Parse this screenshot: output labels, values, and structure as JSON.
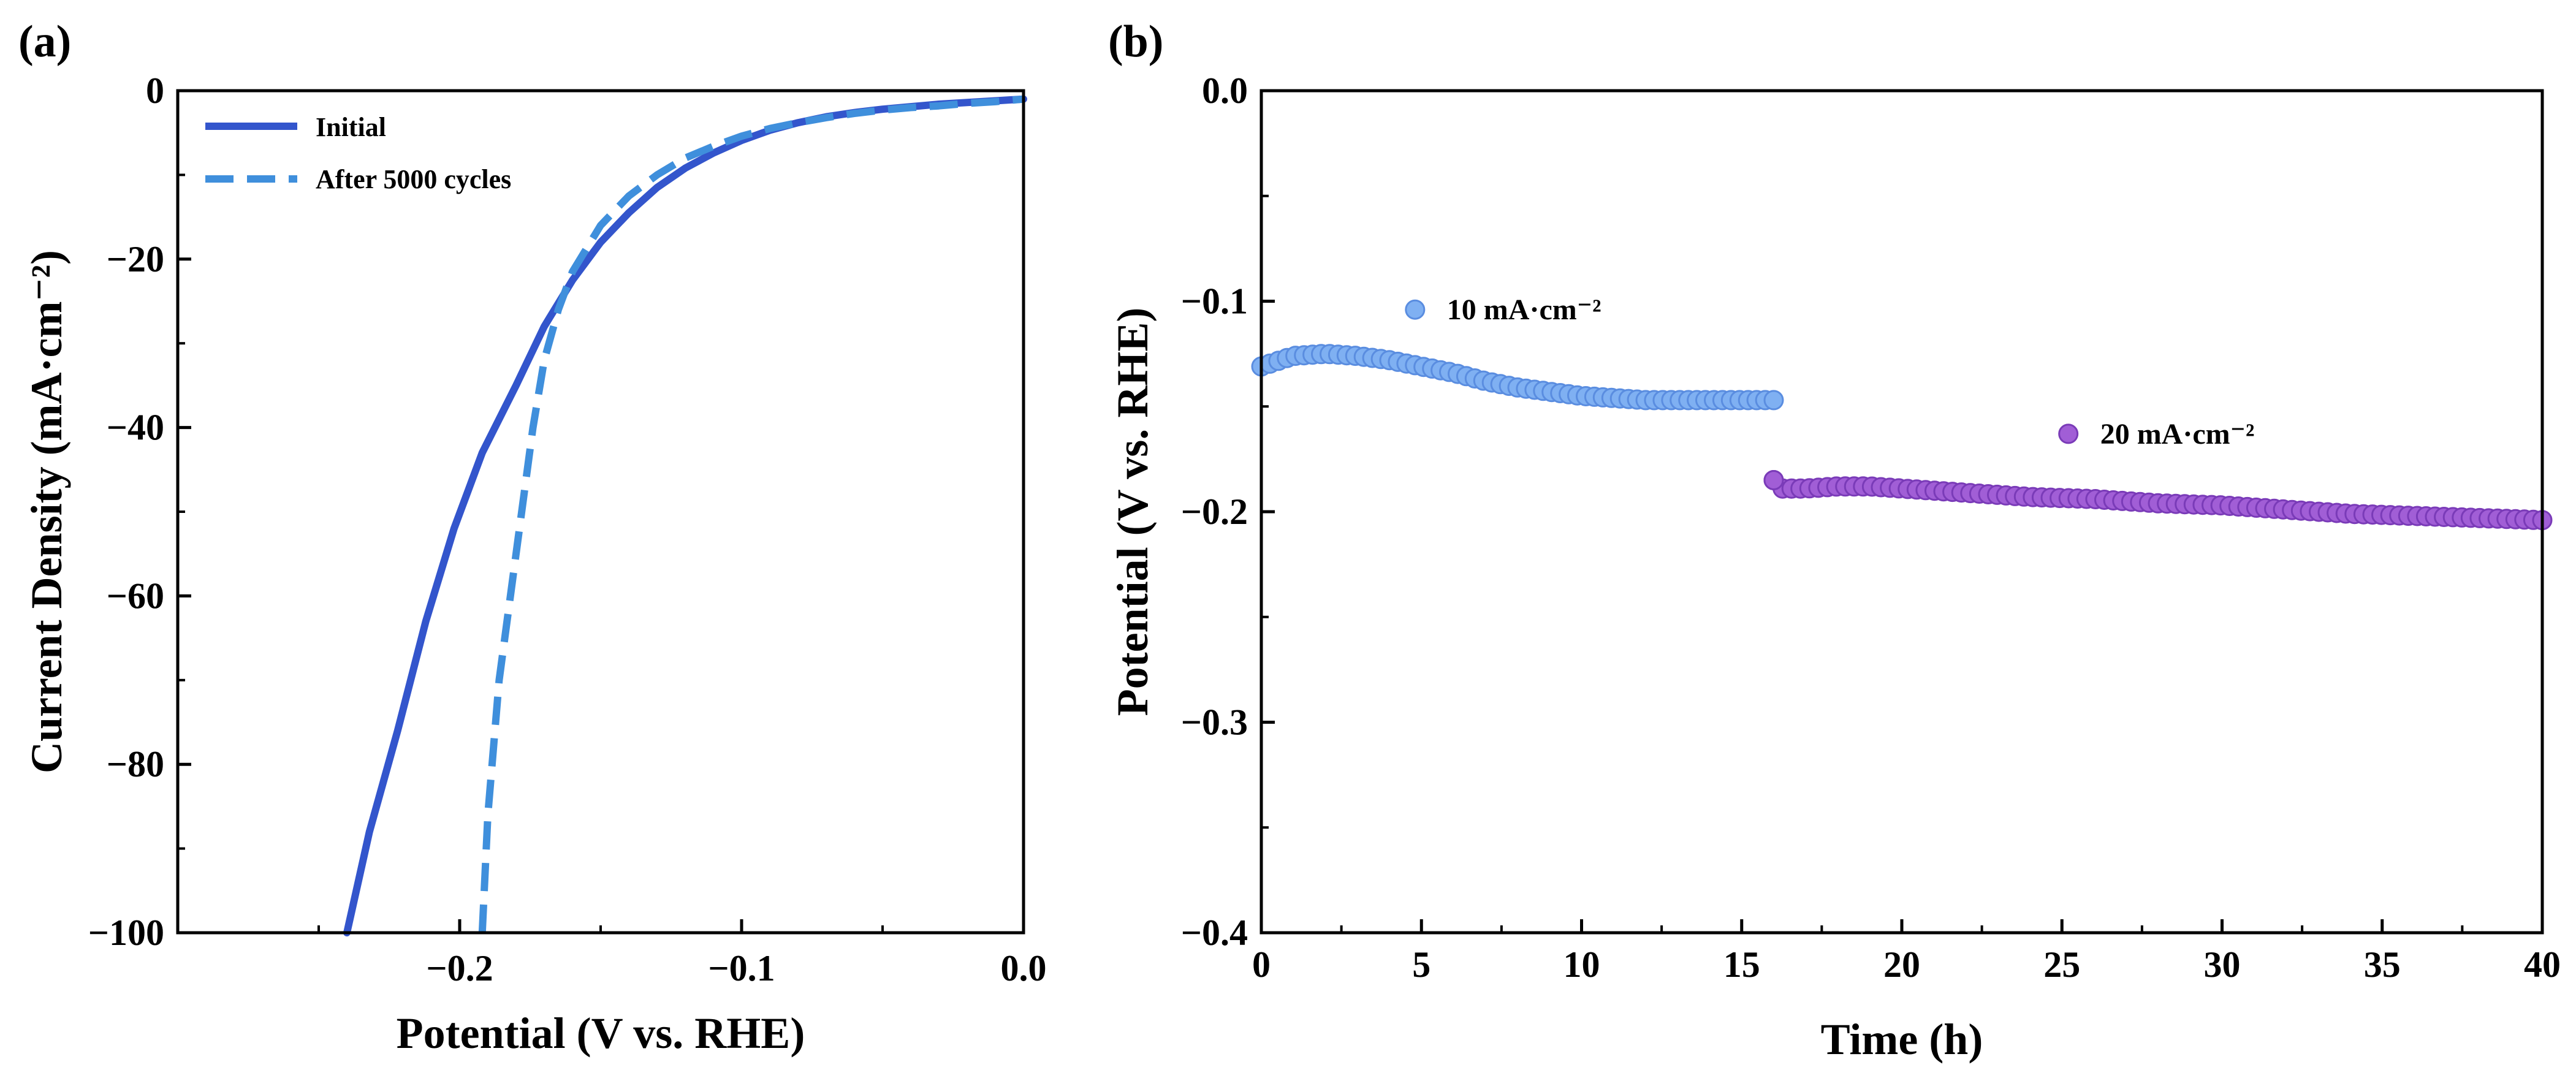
{
  "figure": {
    "panels": [
      {
        "label": "(a)"
      },
      {
        "label": "(b)"
      }
    ]
  },
  "colors": {
    "initial": "#3355cc",
    "after": "#3f8fdc",
    "ten": "#7fb0f2",
    "twenty": "#a15ed6",
    "axis": "#000000"
  },
  "chart_data": [
    {
      "type": "line",
      "panel_label": "(a)",
      "xlabel": "Potential (V vs. RHE)",
      "ylabel": "Current Density (mA·cm⁻²)",
      "xlim": [
        -0.3,
        0.0
      ],
      "ylim": [
        -100,
        0
      ],
      "xticks": [
        -0.2,
        -0.1,
        0.0
      ],
      "xtick_labels": [
        "−0.2",
        "−0.1",
        "0.0"
      ],
      "yticks": [
        0,
        -20,
        -40,
        -60,
        -80,
        -100
      ],
      "ytick_labels": [
        "0",
        "−20",
        "−40",
        "−60",
        "−80",
        "−100"
      ],
      "legend_position": "top-left",
      "series": [
        {
          "name": "Initial",
          "style": "solid",
          "x": [
            -0.24,
            -0.232,
            -0.222,
            -0.212,
            -0.202,
            -0.192,
            -0.18,
            -0.17,
            -0.16,
            -0.15,
            -0.14,
            -0.13,
            -0.12,
            -0.11,
            -0.1,
            -0.09,
            -0.08,
            -0.07,
            -0.06,
            -0.05,
            -0.04,
            -0.03,
            -0.02,
            -0.01,
            0.0
          ],
          "y": [
            -100,
            -88,
            -76,
            -63,
            -52,
            -43,
            -35,
            -28,
            -22.5,
            -18,
            -14.5,
            -11.5,
            -9.2,
            -7.4,
            -5.9,
            -4.7,
            -3.8,
            -3.1,
            -2.6,
            -2.2,
            -1.9,
            -1.6,
            -1.4,
            -1.2,
            -1.0
          ]
        },
        {
          "name": "After 5000 cycles",
          "style": "dashed",
          "x": [
            -0.192,
            -0.191,
            -0.19,
            -0.188,
            -0.186,
            -0.182,
            -0.178,
            -0.174,
            -0.17,
            -0.165,
            -0.16,
            -0.15,
            -0.14,
            -0.13,
            -0.12,
            -0.11,
            -0.1,
            -0.09,
            -0.08,
            -0.07,
            -0.06,
            -0.05,
            -0.04,
            -0.03,
            -0.02,
            -0.01,
            0.0
          ],
          "y": [
            -100,
            -93,
            -86,
            -78,
            -70,
            -60,
            -50,
            -40,
            -32,
            -26,
            -21.5,
            -16,
            -12.5,
            -10,
            -8,
            -6.6,
            -5.4,
            -4.5,
            -3.8,
            -3.2,
            -2.7,
            -2.3,
            -2.0,
            -1.8,
            -1.5,
            -1.3,
            -1.0
          ]
        }
      ]
    },
    {
      "type": "scatter",
      "panel_label": "(b)",
      "xlabel": "Time (h)",
      "ylabel": "Potential (V vs. RHE)",
      "xlim": [
        0,
        40
      ],
      "ylim": [
        -0.4,
        0.0
      ],
      "xticks": [
        0,
        5,
        10,
        15,
        20,
        25,
        30,
        35,
        40
      ],
      "xtick_labels": [
        "0",
        "5",
        "10",
        "15",
        "20",
        "25",
        "30",
        "35",
        "40"
      ],
      "yticks": [
        0.0,
        -0.1,
        -0.2,
        -0.3,
        -0.4
      ],
      "ytick_labels": [
        "0.0",
        "−0.1",
        "−0.2",
        "−0.3",
        "−0.4"
      ],
      "series": [
        {
          "name": "10 mA·cm⁻²",
          "time_range": [
            0,
            16
          ],
          "points": [
            [
              0,
              -0.131
            ],
            [
              1,
              -0.126
            ],
            [
              2,
              -0.125
            ],
            [
              3,
              -0.126
            ],
            [
              4,
              -0.128
            ],
            [
              5,
              -0.131
            ],
            [
              6,
              -0.134
            ],
            [
              7,
              -0.138
            ],
            [
              8,
              -0.141
            ],
            [
              9,
              -0.143
            ],
            [
              10,
              -0.145
            ],
            [
              11,
              -0.146
            ],
            [
              12,
              -0.147
            ],
            [
              13,
              -0.147
            ],
            [
              14,
              -0.147
            ],
            [
              15,
              -0.147
            ],
            [
              16,
              -0.147
            ]
          ],
          "annotation_at": [
            4.8,
            -0.104
          ]
        },
        {
          "name": "20 mA·cm⁻²",
          "time_range": [
            16,
            40
          ],
          "points": [
            [
              16,
              -0.185
            ],
            [
              16.2,
              -0.189
            ],
            [
              17,
              -0.189
            ],
            [
              18,
              -0.188
            ],
            [
              19,
              -0.188
            ],
            [
              20,
              -0.189
            ],
            [
              22,
              -0.191
            ],
            [
              24,
              -0.193
            ],
            [
              26,
              -0.194
            ],
            [
              28,
              -0.196
            ],
            [
              30,
              -0.197
            ],
            [
              32,
              -0.199
            ],
            [
              34,
              -0.201
            ],
            [
              36,
              -0.202
            ],
            [
              38,
              -0.203
            ],
            [
              40,
              -0.204
            ]
          ],
          "annotation_at": [
            25.2,
            -0.163
          ]
        }
      ]
    }
  ]
}
